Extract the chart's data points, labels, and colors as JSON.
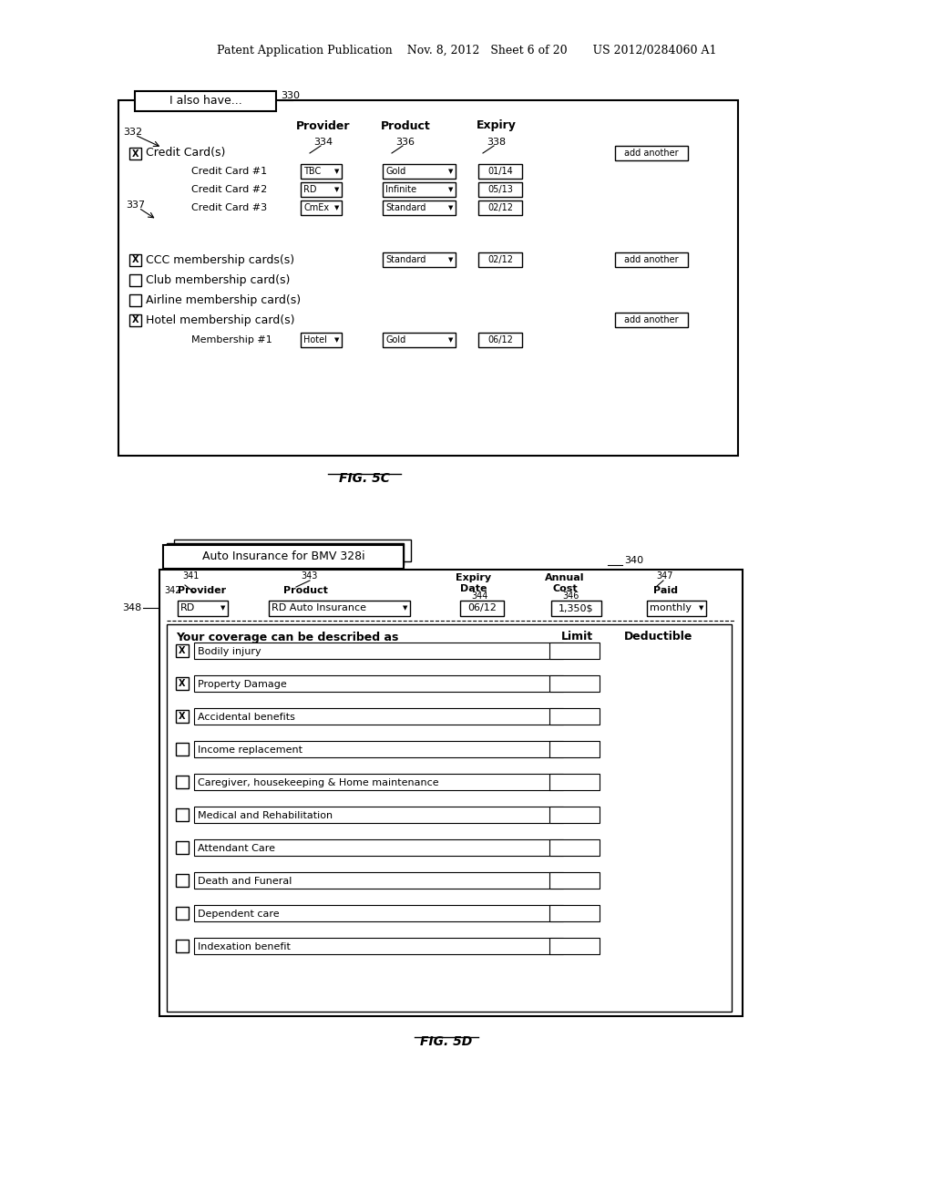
{
  "bg_color": "#ffffff",
  "header_text": "Patent Application Publication    Nov. 8, 2012   Sheet 6 of 20       US 2012/0284060 A1",
  "fig5c_label": "FIG. 5C",
  "fig5d_label": "FIG. 5D",
  "fig5c": {
    "tab_label": "I also have...",
    "ref_330": "330",
    "ref_332": "332",
    "col_provider": "Provider",
    "col_product": "Product",
    "col_expiry": "Expiry",
    "ref_334": "334",
    "ref_336": "336",
    "ref_338": "338",
    "ref_337": "337",
    "rows": [
      {
        "checkbox": true,
        "label": "Credit Card(s)",
        "indent": false,
        "add_another": true,
        "sub_rows": [
          {
            "label": "Credit Card #1",
            "provider": "TBC",
            "product": "Gold",
            "expiry": "01/14"
          },
          {
            "label": "Credit Card #2",
            "provider": "RD",
            "product": "Infinite",
            "expiry": "05/13"
          },
          {
            "label": "Credit Card #3",
            "provider": "CmEx",
            "product": "Standard",
            "expiry": "02/12"
          }
        ]
      },
      {
        "checkbox": true,
        "label": "CCC membership cards(s)",
        "provider": "Standard",
        "expiry": "02/12",
        "add_another": true
      },
      {
        "checkbox": false,
        "label": "Club membership card(s)"
      },
      {
        "checkbox": false,
        "label": "Airline membership card(s)"
      },
      {
        "checkbox": true,
        "label": "Hotel membership card(s)",
        "add_another": true,
        "sub_rows": [
          {
            "label": "Membership #1",
            "provider": "Hotel",
            "product": "Gold",
            "expiry": "06/12"
          }
        ]
      }
    ]
  },
  "fig5d": {
    "ref_340": "340",
    "ref_341": "341",
    "ref_342": "342",
    "ref_343": "343",
    "ref_344": "344",
    "ref_346": "346",
    "ref_347": "347",
    "ref_348": "348",
    "tab_label": "Auto Insurance for BMV 328i",
    "col_provider": "Provider",
    "col_product": "Product",
    "col_expiry_date": "Expiry\nDate",
    "col_annual_cost": "Annual\nCost",
    "col_paid": "Paid",
    "provider_val": "RD",
    "product_val": "RD Auto Insurance",
    "expiry_val": "06/12",
    "cost_val": "1,350$",
    "paid_val": "monthly",
    "coverage_header": "Your coverage can be described as",
    "limit_header": "Limit",
    "deductible_header": "Deductible",
    "coverage_rows": [
      {
        "checked": true,
        "label": "Bodily injury"
      },
      {
        "checked": true,
        "label": "Property Damage"
      },
      {
        "checked": true,
        "label": "Accidental benefits"
      },
      {
        "checked": false,
        "label": "Income replacement"
      },
      {
        "checked": false,
        "label": "Caregiver, housekeeping & Home maintenance"
      },
      {
        "checked": false,
        "label": "Medical and Rehabilitation"
      },
      {
        "checked": false,
        "label": "Attendant Care"
      },
      {
        "checked": false,
        "label": "Death and Funeral"
      },
      {
        "checked": false,
        "label": "Dependent care"
      },
      {
        "checked": false,
        "label": "Indexation benefit"
      }
    ]
  }
}
